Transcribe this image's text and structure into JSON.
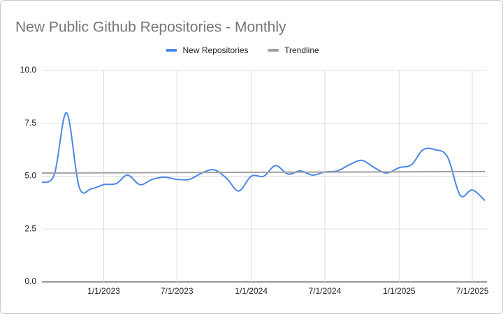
{
  "chart_data": {
    "type": "line",
    "title": "New Public Github Repositories - Monthly",
    "x": [
      "8/1/2022",
      "9/1/2022",
      "10/1/2022",
      "11/1/2022",
      "12/1/2022",
      "1/1/2023",
      "2/1/2023",
      "3/1/2023",
      "4/1/2023",
      "5/1/2023",
      "6/1/2023",
      "7/1/2023",
      "8/1/2023",
      "9/1/2023",
      "10/1/2023",
      "11/1/2023",
      "12/1/2023",
      "1/1/2024",
      "2/1/2024",
      "3/1/2024",
      "4/1/2024",
      "5/1/2024",
      "6/1/2024",
      "7/1/2024",
      "8/1/2024",
      "9/1/2024",
      "10/1/2024",
      "11/1/2024",
      "12/1/2024",
      "1/1/2025",
      "2/1/2025",
      "3/1/2025",
      "4/1/2025",
      "5/1/2025",
      "6/1/2025",
      "7/1/2025",
      "8/1/2025"
    ],
    "series": [
      {
        "name": "New Repositories",
        "color": "#4a86e8",
        "values": [
          4.7,
          5.1,
          8.0,
          4.5,
          4.4,
          4.6,
          4.65,
          5.05,
          4.6,
          4.85,
          4.95,
          4.85,
          4.85,
          5.15,
          5.3,
          4.9,
          4.3,
          5.0,
          5.0,
          5.5,
          5.1,
          5.25,
          5.05,
          5.2,
          5.25,
          5.55,
          5.75,
          5.4,
          5.15,
          5.4,
          5.55,
          6.25,
          6.25,
          5.9,
          4.1,
          4.35,
          3.85
        ]
      },
      {
        "name": "Trendline",
        "color": "#a0a0a0",
        "x": [
          "8/1/2022",
          "8/1/2025"
        ],
        "values": [
          5.15,
          5.22
        ]
      }
    ],
    "xlim": [
      "8/1/2022",
      "8/1/2025"
    ],
    "xticks": [
      "1/1/2023",
      "7/1/2023",
      "1/1/2024",
      "7/1/2024",
      "1/1/2025",
      "7/1/2025"
    ],
    "ylim": [
      0,
      10
    ],
    "yticks": [
      {
        "value": 0,
        "label": "0.0"
      },
      2.5,
      {
        "value": 5,
        "label": "5.0"
      },
      7.5,
      {
        "value": 10,
        "label": "10.0"
      }
    ],
    "grid": true,
    "legend": "top"
  }
}
